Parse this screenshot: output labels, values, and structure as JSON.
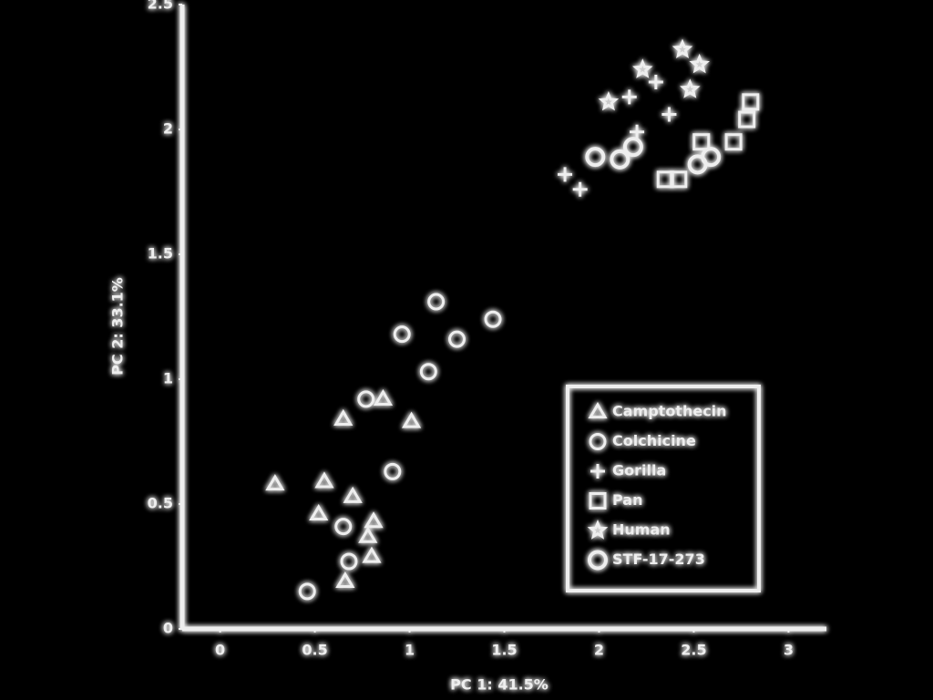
{
  "chart_data": {
    "type": "scatter",
    "x_label": "PC 1: 41.5%",
    "y_label": "PC 2: 33.1%",
    "xlim": [
      -0.2,
      3.2
    ],
    "xticks": [
      0.0,
      0.5,
      1.0,
      1.5,
      2.0,
      2.5,
      3.0
    ],
    "ylim": [
      0,
      2.5
    ],
    "yticks": [
      0.0,
      0.5,
      1.0,
      1.5,
      2.0,
      2.5
    ],
    "legend": "lower right",
    "color": "#eeeeee",
    "series": [
      {
        "name": "Camptothecin",
        "marker": "triangle",
        "x": [
          0.29,
          0.55,
          0.7,
          0.52,
          0.81,
          0.78,
          0.8,
          0.66,
          0.65,
          1.01,
          0.86
        ],
        "y": [
          0.58,
          0.59,
          0.53,
          0.46,
          0.43,
          0.37,
          0.29,
          0.19,
          0.84,
          0.83,
          0.92
        ]
      },
      {
        "name": "Colchicine",
        "marker": "circle",
        "x": [
          0.46,
          0.65,
          0.68,
          0.91,
          0.77,
          1.14,
          0.96,
          1.25,
          1.1,
          1.44
        ],
        "y": [
          0.15,
          0.41,
          0.27,
          0.63,
          0.92,
          1.31,
          1.18,
          1.16,
          1.03,
          1.24
        ]
      },
      {
        "name": "Gorilla",
        "marker": "plus",
        "x": [
          1.82,
          1.9,
          2.16,
          2.3,
          2.37,
          2.2
        ],
        "y": [
          1.82,
          1.76,
          2.13,
          2.19,
          2.06,
          1.99
        ]
      },
      {
        "name": "Pan",
        "marker": "square",
        "x": [
          2.8,
          2.78,
          2.71,
          2.54,
          2.42,
          2.35
        ],
        "y": [
          2.11,
          2.04,
          1.95,
          1.95,
          1.8,
          1.8
        ]
      },
      {
        "name": "Human",
        "marker": "star",
        "x": [
          2.44,
          2.53,
          2.48,
          2.23,
          2.05
        ],
        "y": [
          2.32,
          2.26,
          2.16,
          2.24,
          2.11
        ]
      },
      {
        "name": "STF-17-273",
        "marker": "ring",
        "x": [
          1.98,
          2.11,
          2.18,
          2.52,
          2.59
        ],
        "y": [
          1.89,
          1.88,
          1.93,
          1.86,
          1.89
        ]
      }
    ]
  }
}
